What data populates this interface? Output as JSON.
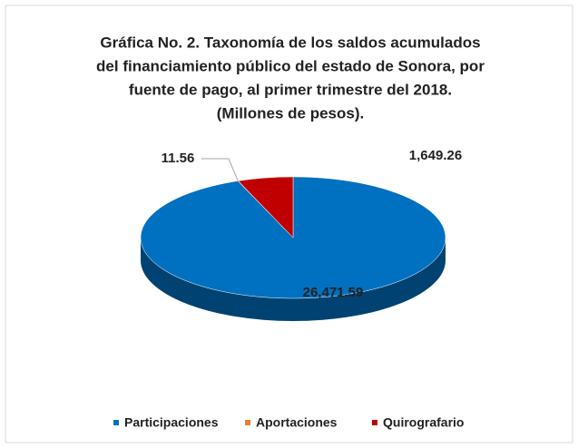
{
  "chart_data": {
    "type": "pie3d",
    "title": [
      "Gráfica No. 2. Taxonomía de los saldos acumulados",
      "del financiamiento público del estado de Sonora, por",
      "fuente de pago, al primer trimestre del 2018.",
      "(Millones de pesos)."
    ],
    "categories": [
      "Participaciones",
      "Aportaciones",
      "Quirografario"
    ],
    "values": [
      26471.59,
      11.56,
      1649.26
    ],
    "value_labels": [
      "26,471.59",
      "11.56",
      "1,649.26"
    ],
    "colors": [
      "#0070c0",
      "#ed7d31",
      "#c00000"
    ],
    "legend": "bottom"
  }
}
